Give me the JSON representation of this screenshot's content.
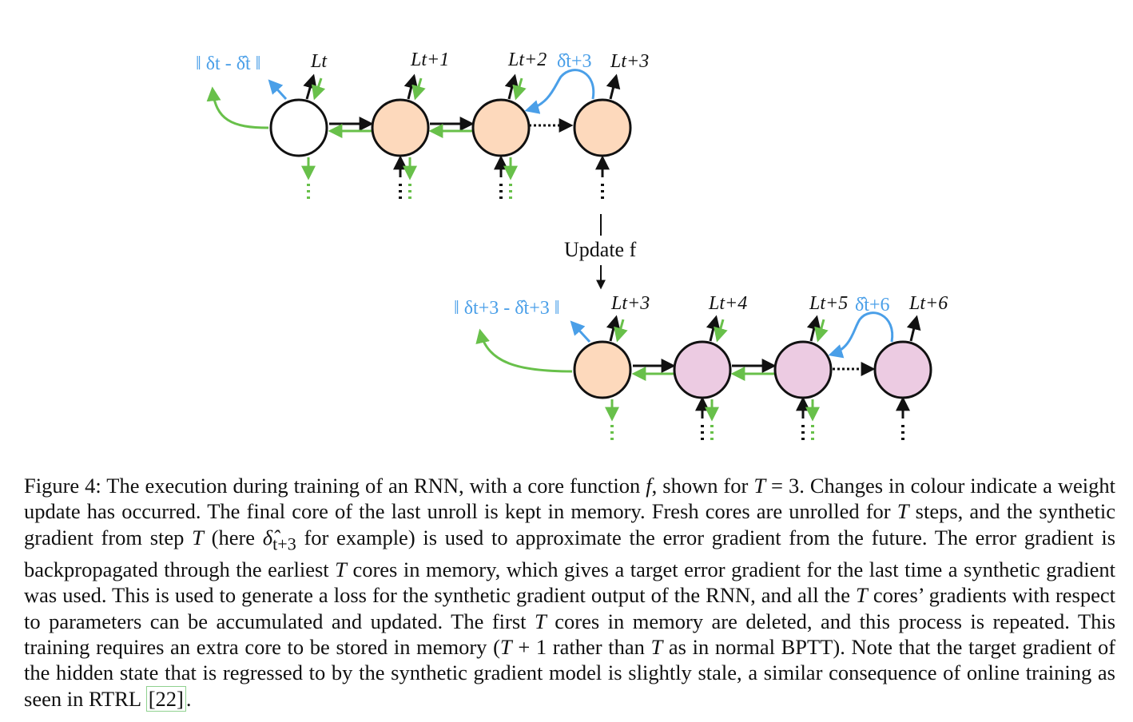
{
  "figure": {
    "top_row": {
      "loss_label": "‖ δt - δ̂t ‖",
      "losses": [
        "Lt",
        "Lt+1",
        "Lt+2",
        "Lt+3"
      ],
      "synthetic_label": "δ̂t+3"
    },
    "update_label": "Update f",
    "bottom_row": {
      "loss_label": "‖ δt+3 - δ̂t+3 ‖",
      "losses": [
        "Lt+3",
        "Lt+4",
        "Lt+5",
        "Lt+6"
      ],
      "synthetic_label": "δ̂t+6"
    },
    "colors": {
      "fresh_core": "#fdd9bc",
      "updated_core": "#eccbe2",
      "old_core": "#ffffff",
      "gradient_arrow": "#68c04a",
      "synthetic_gradient": "#4a9fe8",
      "forward_arrow": "#111111"
    }
  },
  "caption": {
    "label": "Figure 4:",
    "p1": "The execution during training of an RNN, with a core function",
    "f": "f",
    "p2": ", shown for",
    "T1": "T",
    "p3": "= 3. Changes in colour indicate a weight update has occurred. The final core of the last unroll is kept in memory. Fresh cores are unrolled for",
    "T2": "T",
    "p4": "steps, and the synthetic gradient from step",
    "T3": "T",
    "p5": "(here",
    "delta": "δ̂",
    "delta_sub": "t+3",
    "p6": "for example) is used to approximate the error gradient from the future. The error gradient is backpropagated through the earliest",
    "T4": "T",
    "p7": "cores in memory, which gives a target error gradient for the last time a synthetic gradient was used. This is used to generate a loss for the synthetic gradient output of the RNN, and all the",
    "T5": "T",
    "p8": "cores’ gradients with respect to parameters can be accumulated and updated. The first",
    "T6": "T",
    "p9": "cores in memory are deleted, and this process is repeated. This training requires an extra core to be stored in memory (",
    "T7": "T",
    "p10": "+ 1 rather than",
    "T8": "T",
    "p11": "as in normal BPTT). Note that the target gradient of the hidden state that is regressed to by the synthetic gradient model is slightly stale, a similar consequence of online training as seen in RTRL",
    "ref": "[22]",
    "p12": "."
  }
}
